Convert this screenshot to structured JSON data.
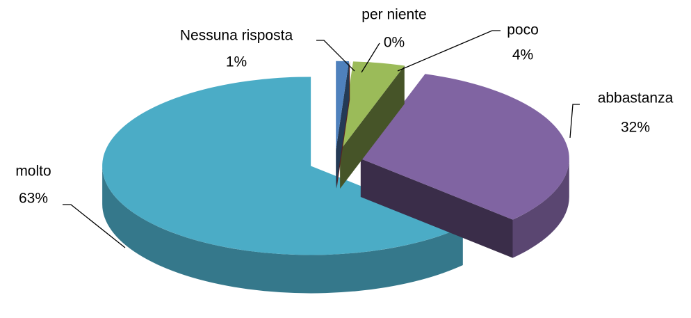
{
  "chart_data": {
    "type": "pie3d",
    "categories": [
      "Nessuna risposta",
      "per niente",
      "poco",
      "abbastanza",
      "molto"
    ],
    "values": [
      1,
      0,
      4,
      32,
      63
    ],
    "value_labels": [
      "1%",
      "0%",
      "4%",
      "32%",
      "63%"
    ],
    "colors": [
      "#4f81bd",
      "#c0504d",
      "#9bbb59",
      "#8064a2",
      "#4bacc6"
    ]
  }
}
